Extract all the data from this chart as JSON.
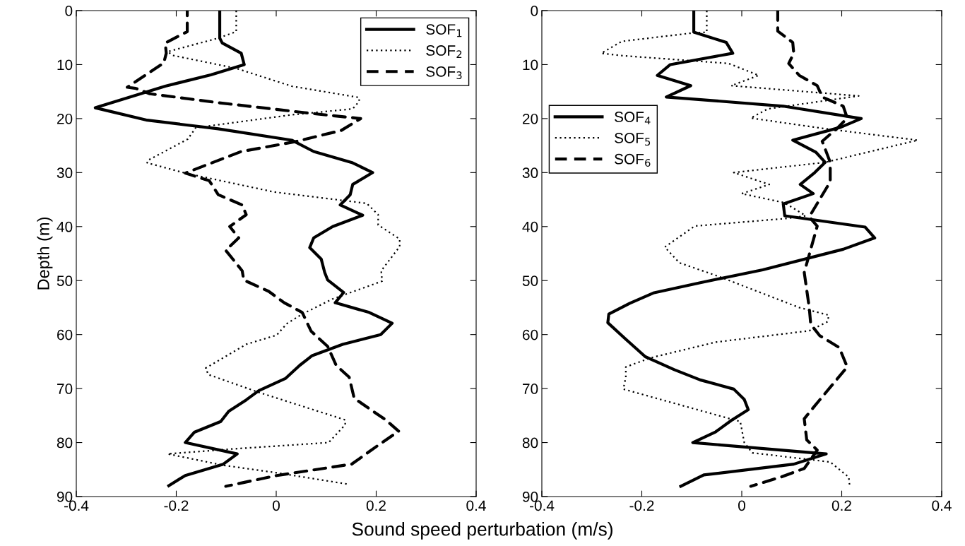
{
  "chart_data": [
    {
      "type": "line",
      "ylabel": "Depth (m)",
      "xlabel": "Sound speed perturbation (m/s)",
      "xlim": [
        -0.4,
        0.4
      ],
      "xticks": [
        -0.4,
        -0.2,
        0,
        0.2,
        0.4
      ],
      "ylim": [
        90,
        0
      ],
      "yticks": [
        0,
        10,
        20,
        30,
        40,
        50,
        60,
        70,
        80,
        90
      ],
      "grid": false,
      "legend": "top right",
      "marker": "none",
      "series": [
        {
          "name": "SOF$_{1}$",
          "color": "#000000",
          "line_style": "solid",
          "x": [
            -0.113,
            -0.113,
            -0.108,
            -0.07,
            -0.064,
            -0.131,
            -0.222,
            -0.362,
            -0.258,
            -0.116,
            0.031,
            0.075,
            0.153,
            0.193,
            0.153,
            0.148,
            0.128,
            0.173,
            0.113,
            0.075,
            0.067,
            0.09,
            0.097,
            0.103,
            0.135,
            0.118,
            0.186,
            0.232,
            0.209,
            0.133,
            0.072,
            0.047,
            0.019,
            -0.035,
            -0.06,
            -0.095,
            -0.111,
            -0.164,
            -0.182,
            -0.078,
            -0.106,
            -0.182,
            -0.215
          ],
          "values": [
            0,
            5.1,
            6,
            7.9,
            10,
            11.9,
            14,
            18,
            20.3,
            21.9,
            24,
            26.1,
            28.2,
            30,
            32.2,
            34.1,
            36,
            37.9,
            40,
            42.1,
            43.9,
            46,
            48.5,
            49.9,
            52.2,
            54.1,
            55.9,
            57.9,
            60,
            61.8,
            63.9,
            65.7,
            68.1,
            70.4,
            72.1,
            74.2,
            76.1,
            78.1,
            80,
            82.1,
            84,
            86.1,
            88
          ]
        },
        {
          "name": "SOF$_{2}$",
          "color": "#000000",
          "line_style": "dotted",
          "x": [
            -0.08,
            -0.08,
            -0.116,
            -0.217,
            -0.207,
            -0.08,
            0.031,
            0.166,
            0.166,
            0.153,
            0.031,
            -0.161,
            -0.177,
            -0.258,
            -0.258,
            -0.182,
            -0.004,
            0.181,
            0.204,
            0.204,
            0.247,
            0.247,
            0.21,
            0.212,
            0.113,
            0.052,
            0.021,
            0.001,
            -0.06,
            -0.141,
            -0.136,
            -0.035,
            0.138,
            0.138,
            0.105,
            -0.09,
            -0.217,
            -0.106,
            0.001,
            0.143
          ],
          "values": [
            0,
            3.9,
            5.1,
            7.6,
            8.3,
            10.7,
            14,
            16.1,
            16.8,
            18.2,
            19.3,
            21.7,
            23.8,
            27.8,
            28.2,
            30.1,
            33.6,
            35.7,
            37.8,
            39.7,
            42.3,
            43.7,
            48.2,
            50.1,
            53.4,
            56.2,
            58,
            60.1,
            61.8,
            66.2,
            67.4,
            70.7,
            75.8,
            76.7,
            80,
            81.2,
            82.1,
            84.2,
            85.6,
            87.7
          ]
        },
        {
          "name": "SOF$_{3}$",
          "color": "#000000",
          "line_style": "dashed",
          "x": [
            -0.178,
            -0.178,
            -0.222,
            -0.22,
            -0.225,
            -0.298,
            -0.281,
            -0.253,
            -0.121,
            0.057,
            0.169,
            0.13,
            0.037,
            -0.07,
            -0.182,
            -0.134,
            -0.116,
            -0.068,
            -0.06,
            -0.093,
            -0.075,
            -0.101,
            -0.068,
            -0.065,
            -0.015,
            0.016,
            0.052,
            0.07,
            0.103,
            0.12,
            0.146,
            0.156,
            0.219,
            0.245,
            0.204,
            0.151,
            0.001,
            -0.101
          ],
          "values": [
            0,
            3.9,
            6,
            7.9,
            9.7,
            14.2,
            14.4,
            15.4,
            17,
            18.9,
            20,
            22.2,
            24.3,
            26.1,
            30.1,
            31.5,
            34.1,
            36,
            37.8,
            40,
            42.1,
            44.4,
            48.2,
            49.9,
            52,
            54.1,
            55.9,
            59.4,
            62.2,
            65.7,
            67.9,
            71.8,
            75.8,
            77.9,
            80.5,
            84,
            86.1,
            88.1
          ]
        }
      ]
    },
    {
      "type": "line",
      "xlim": [
        -0.4,
        0.4
      ],
      "xticks": [
        -0.4,
        -0.2,
        0,
        0.2,
        0.4
      ],
      "ylim": [
        90,
        0
      ],
      "yticks": [
        0,
        10,
        20,
        30,
        40,
        50,
        60,
        70,
        80,
        90
      ],
      "grid": false,
      "legend": "left",
      "marker": "none",
      "series": [
        {
          "name": "SOF$_{4}$",
          "color": "#000000",
          "line_style": "solid",
          "x": [
            -0.096,
            -0.096,
            -0.031,
            -0.018,
            -0.143,
            -0.169,
            -0.102,
            -0.151,
            0.083,
            0.239,
            0.198,
            0.102,
            0.148,
            0.167,
            0.146,
            0.117,
            0.143,
            0.083,
            0.086,
            0.247,
            0.266,
            0.203,
            0.042,
            -0.083,
            -0.177,
            -0.224,
            -0.266,
            -0.268,
            -0.234,
            -0.193,
            -0.135,
            -0.083,
            -0.016,
            0.005,
            0.013,
            -0.021,
            -0.052,
            -0.098,
            0.169,
            0.104,
            -0.076,
            -0.122
          ],
          "values": [
            0,
            4,
            5.9,
            7.9,
            10,
            12,
            13.9,
            16,
            17.7,
            20,
            21.6,
            24,
            26.2,
            28.1,
            30,
            32.2,
            33.9,
            35.8,
            38,
            40.1,
            42.1,
            44.2,
            48,
            50.4,
            52.3,
            54.2,
            56.2,
            57.8,
            60.7,
            64.1,
            66.5,
            68.4,
            70.1,
            72,
            73.9,
            75.9,
            78,
            80,
            82.1,
            84,
            86,
            88.1
          ]
        },
        {
          "name": "SOF$_{5}$",
          "color": "#000000",
          "line_style": "dotted",
          "x": [
            -0.07,
            -0.07,
            -0.104,
            -0.24,
            -0.281,
            -0.245,
            -0.026,
            0.034,
            -0.021,
            0.234,
            0.052,
            0.018,
            0.161,
            0.352,
            0.167,
            -0.016,
            0.055,
            0,
            0.086,
            0.128,
            0.089,
            -0.094,
            -0.154,
            -0.125,
            -0.047,
            0.115,
            0.174,
            0.172,
            0.135,
            -0.052,
            -0.182,
            -0.232,
            -0.232,
            -0.237,
            -0.031,
            -0.003,
            0.005,
            0.021,
            0.177,
            0.214,
            0.216
          ],
          "values": [
            0,
            4,
            4.2,
            5.7,
            7.9,
            8.3,
            9.8,
            12,
            13.9,
            15.8,
            18.2,
            19.9,
            21.8,
            24,
            28.1,
            30,
            32.2,
            33.9,
            35.6,
            38,
            38.5,
            39.9,
            43.8,
            46.7,
            49.2,
            55,
            56.4,
            57.6,
            59.3,
            61.4,
            64.3,
            66,
            67.9,
            70.1,
            75.4,
            76.1,
            80,
            81.9,
            83.6,
            86.4,
            88.1
          ]
        },
        {
          "name": "SOF$_{6}$",
          "color": "#000000",
          "line_style": "dashed",
          "x": [
            0.072,
            0.072,
            0.102,
            0.104,
            0.094,
            0.115,
            0.151,
            0.161,
            0.203,
            0.211,
            0.193,
            0.161,
            0.177,
            0.177,
            0.146,
            0.135,
            0.151,
            0.125,
            0.135,
            0.138,
            0.156,
            0.195,
            0.211,
            0.146,
            0.125,
            0.13,
            0.151,
            0.125,
            0.078,
            0.018
          ],
          "values": [
            0,
            3.8,
            5.9,
            7.9,
            9.8,
            12,
            13.9,
            16,
            17.7,
            19.9,
            21.6,
            24.2,
            28.1,
            31.7,
            36.5,
            38.2,
            39.9,
            48.5,
            55,
            58.1,
            60.2,
            62.4,
            66,
            73.2,
            75.6,
            79.5,
            81.4,
            84.8,
            86.4,
            88.1
          ]
        }
      ]
    }
  ]
}
